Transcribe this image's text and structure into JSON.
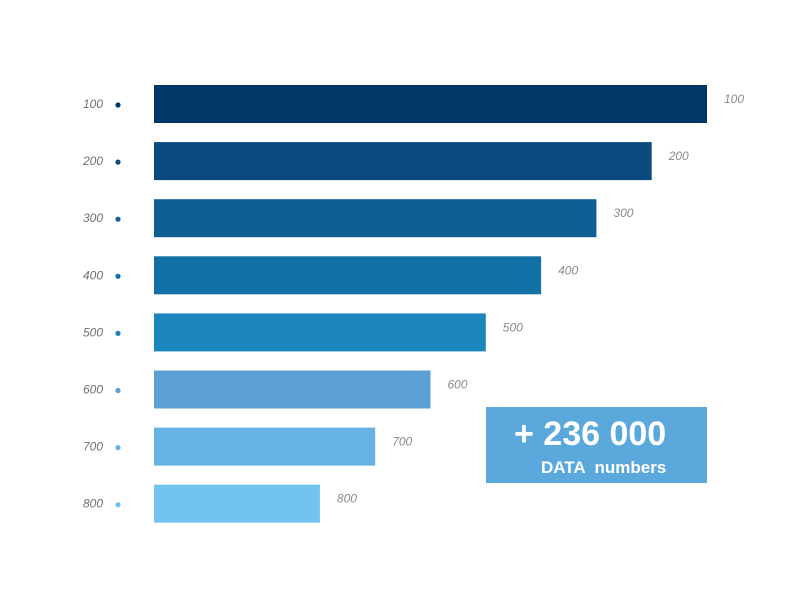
{
  "chart_data": {
    "type": "bar",
    "orientation": "horizontal",
    "categories": [
      "100",
      "200",
      "300",
      "400",
      "500",
      "600",
      "700",
      "800"
    ],
    "values": [
      100,
      90,
      80,
      70,
      60,
      50,
      40,
      30
    ],
    "value_labels": [
      "100",
      "200",
      "300",
      "400",
      "500",
      "600",
      "700",
      "800"
    ],
    "xlim": [
      0,
      100
    ],
    "grid": false,
    "colors": [
      "#003767",
      "#0b4a7f",
      "#0e5e94",
      "#1170a4",
      "#1a86bb",
      "#5aa0d4",
      "#66b3e3",
      "#72c3ef"
    ],
    "dot_colors": [
      "#003767",
      "#0b4a7f",
      "#0e5e94",
      "#1170a4",
      "#1a86bb",
      "#5aa0d4",
      "#66b3e3",
      "#72c3ef"
    ]
  },
  "callout": {
    "value": "+ 236 000",
    "label": "DATA  numbers",
    "color": "#5aa8dc"
  }
}
